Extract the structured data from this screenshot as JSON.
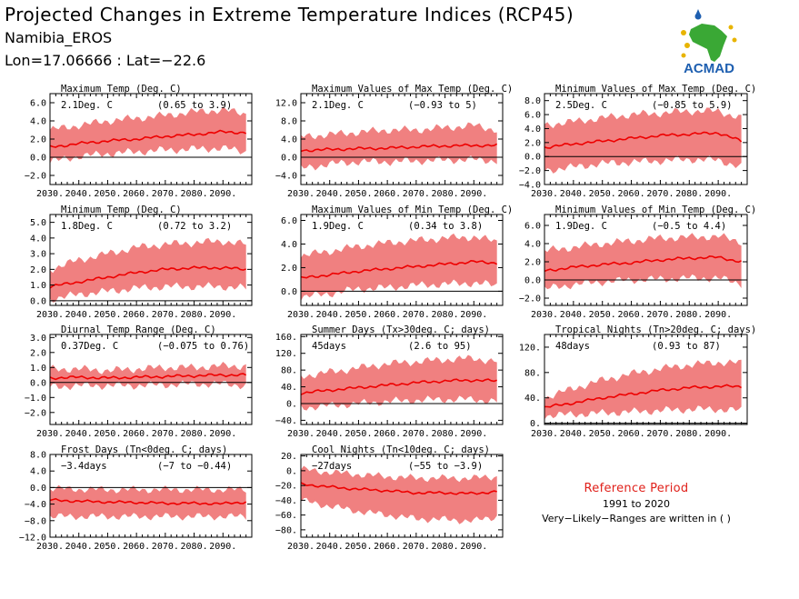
{
  "header": {
    "title": "Projected Changes in Extreme Temperature Indices (RCP45)",
    "station": "Namibia_EROS",
    "coords": "Lon=17.06666 : Lat=−22.6",
    "logo_text": "ACMAD"
  },
  "legend": {
    "title": "Reference Period",
    "period": "1991 to 2020",
    "note": "Very−Likely−Ranges are written in ( )"
  },
  "colors": {
    "band": "#f08080",
    "line": "#ee0000",
    "axis": "#000000",
    "logo_blue": "#1e5fb0",
    "logo_green": "#3aa835",
    "logo_yellow": "#e8b400"
  },
  "chart_data": [
    {
      "type": "area",
      "title": "Maximum Temp (Deg. C)",
      "summary": "2.1Deg. C",
      "range_text": "(0.65 to 3.9)",
      "x": [
        2030,
        2040,
        2050,
        2060,
        2070,
        2080,
        2090,
        2098
      ],
      "x_ticks": [
        "2030.",
        "2040.",
        "2050.",
        "2060.",
        "2070.",
        "2080.",
        "2090."
      ],
      "y_ticks": [
        "6.0",
        "4.0",
        "2.0",
        "0.0",
        "−2.0"
      ],
      "y_tick_values": [
        6,
        4,
        2,
        0,
        -2
      ],
      "ylim": [
        -3,
        7
      ],
      "median": [
        1.1,
        1.5,
        1.8,
        2.0,
        2.3,
        2.5,
        2.8,
        2.7
      ],
      "lower": [
        -0.5,
        0.1,
        0.4,
        0.6,
        0.8,
        0.9,
        1.0,
        0.6
      ],
      "upper": [
        3.0,
        3.5,
        4.0,
        4.3,
        4.6,
        5.0,
        5.2,
        4.8
      ],
      "zero_line": true
    },
    {
      "type": "area",
      "title": "Maximum Values of Max Temp (Deg. C)",
      "summary": "2.1Deg. C",
      "range_text": "(−0.93 to 5)",
      "x": [
        2030,
        2040,
        2050,
        2060,
        2070,
        2080,
        2090,
        2098
      ],
      "x_ticks": [
        "2030.",
        "2040.",
        "2050.",
        "2060.",
        "2070.",
        "2080.",
        "2090."
      ],
      "y_ticks": [
        "12.0",
        "8.0",
        "4.0",
        "0.0",
        "−4.0"
      ],
      "y_tick_values": [
        12,
        8,
        4,
        0,
        -4
      ],
      "ylim": [
        -6,
        14
      ],
      "median": [
        1.5,
        1.7,
        1.9,
        2.0,
        2.3,
        2.5,
        2.6,
        2.6
      ],
      "lower": [
        -2.5,
        -1.5,
        -1.0,
        -1.0,
        -0.8,
        -0.6,
        -0.5,
        -0.8
      ],
      "upper": [
        4.5,
        5.0,
        5.5,
        6.0,
        6.0,
        6.5,
        7.0,
        6.0
      ],
      "zero_line": true
    },
    {
      "type": "area",
      "title": "Minimum Values of Max Temp (Deg. C)",
      "summary": "2.5Deg. C",
      "range_text": "(−0.85 to 5.9)",
      "x": [
        2030,
        2040,
        2050,
        2060,
        2070,
        2080,
        2090,
        2098
      ],
      "x_ticks": [
        "2030.",
        "2040.",
        "2050.",
        "2060.",
        "2070.",
        "2080.",
        "2090."
      ],
      "y_ticks": [
        "8.0",
        "6.0",
        "4.0",
        "2.0",
        "0.0",
        "−2.0",
        "−4.0"
      ],
      "y_tick_values": [
        8,
        6,
        4,
        2,
        0,
        -2,
        -4
      ],
      "ylim": [
        -4,
        9
      ],
      "median": [
        1.3,
        1.8,
        2.2,
        2.6,
        3.0,
        3.2,
        3.4,
        2.2
      ],
      "lower": [
        -2.0,
        -1.5,
        -1.0,
        -0.8,
        -0.6,
        -0.4,
        -0.5,
        -1.5
      ],
      "upper": [
        4.5,
        5.0,
        5.5,
        6.0,
        6.2,
        6.5,
        6.5,
        5.5
      ],
      "zero_line": true
    },
    {
      "type": "area",
      "title": "Minimum Temp (Deg. C)",
      "summary": "1.8Deg. C",
      "range_text": "(0.72 to 3.2)",
      "x": [
        2030,
        2040,
        2050,
        2060,
        2070,
        2080,
        2090,
        2098
      ],
      "x_ticks": [
        "2030.",
        "2040.",
        "2050.",
        "2060.",
        "2070.",
        "2080.",
        "2090."
      ],
      "y_ticks": [
        "5.0",
        "4.0",
        "3.0",
        "2.0",
        "1.0",
        "0.0"
      ],
      "y_tick_values": [
        5,
        4,
        3,
        2,
        1,
        0
      ],
      "ylim": [
        -0.3,
        5.5
      ],
      "median": [
        0.9,
        1.2,
        1.5,
        1.8,
        2.0,
        2.1,
        2.1,
        2.0
      ],
      "lower": [
        0.1,
        0.4,
        0.6,
        0.8,
        0.9,
        0.9,
        0.9,
        0.8
      ],
      "upper": [
        2.0,
        2.6,
        3.0,
        3.4,
        3.6,
        3.7,
        3.8,
        3.6
      ],
      "zero_line": true
    },
    {
      "type": "area",
      "title": "Maximum Values of Min Temp (Deg. C)",
      "summary": "1.9Deg. C",
      "range_text": "(0.34 to 3.8)",
      "x": [
        2030,
        2040,
        2050,
        2060,
        2070,
        2080,
        2090,
        2098
      ],
      "x_ticks": [
        "2030.",
        "2040.",
        "2050.",
        "2060.",
        "2070.",
        "2080.",
        "2090."
      ],
      "y_ticks": [
        "6.0",
        "4.0",
        "2.0",
        "0.0"
      ],
      "y_tick_values": [
        6,
        4,
        2,
        0
      ],
      "ylim": [
        -1.2,
        6.5
      ],
      "median": [
        1.1,
        1.4,
        1.7,
        1.9,
        2.1,
        2.3,
        2.5,
        2.4
      ],
      "lower": [
        -0.5,
        -0.2,
        0.2,
        0.3,
        0.5,
        0.6,
        0.7,
        0.5
      ],
      "upper": [
        3.0,
        3.4,
        3.8,
        4.1,
        4.3,
        4.5,
        4.6,
        4.2
      ],
      "zero_line": true
    },
    {
      "type": "area",
      "title": "Minimum Values of Min Temp (Deg. C)",
      "summary": "1.9Deg. C",
      "range_text": "(−0.5 to 4.4)",
      "x": [
        2030,
        2040,
        2050,
        2060,
        2070,
        2080,
        2090,
        2098
      ],
      "x_ticks": [
        "2030.",
        "2040.",
        "2050.",
        "2060.",
        "2070.",
        "2080.",
        "2090."
      ],
      "y_ticks": [
        "6.0",
        "4.0",
        "2.0",
        "0.0",
        "−2.0"
      ],
      "y_tick_values": [
        6,
        4,
        2,
        0,
        -2
      ],
      "ylim": [
        -2.8,
        7.2
      ],
      "median": [
        1.0,
        1.4,
        1.7,
        1.9,
        2.2,
        2.4,
        2.5,
        2.0
      ],
      "lower": [
        -1.0,
        -0.5,
        -0.2,
        0.0,
        0.1,
        0.2,
        0.2,
        -0.4
      ],
      "upper": [
        3.2,
        3.6,
        4.0,
        4.3,
        4.6,
        4.7,
        4.8,
        4.2
      ],
      "zero_line": true
    },
    {
      "type": "area",
      "title": "Diurnal Temp Range (Deg. C)",
      "summary": "0.37Deg. C",
      "range_text": "(−0.075 to 0.76)",
      "x": [
        2030,
        2040,
        2050,
        2060,
        2070,
        2080,
        2090,
        2098
      ],
      "x_ticks": [
        "2030.",
        "2040.",
        "2050.",
        "2060.",
        "2070.",
        "2080.",
        "2090."
      ],
      "y_ticks": [
        "3.0",
        "2.0",
        "1.0",
        "0.0",
        "−1.0",
        "−2.0"
      ],
      "y_tick_values": [
        3,
        2,
        1,
        0,
        -1,
        -2
      ],
      "ylim": [
        -2.8,
        3.2
      ],
      "median": [
        0.3,
        0.35,
        0.3,
        0.35,
        0.4,
        0.45,
        0.5,
        0.5
      ],
      "lower": [
        -0.3,
        -0.2,
        -0.2,
        -0.2,
        -0.15,
        -0.1,
        -0.1,
        -0.2
      ],
      "upper": [
        0.9,
        0.9,
        0.8,
        0.9,
        1.0,
        1.0,
        1.1,
        1.1
      ],
      "zero_line": true
    },
    {
      "type": "area",
      "title": "Summer Days (Tx>30deg. C; days)",
      "summary": "45days",
      "range_text": "(2.6 to 95)",
      "x": [
        2030,
        2040,
        2050,
        2060,
        2070,
        2080,
        2090,
        2098
      ],
      "x_ticks": [
        "2030.",
        "2040.",
        "2050.",
        "2060.",
        "2070.",
        "2080.",
        "2090."
      ],
      "y_ticks": [
        "160.",
        "120.",
        "80.",
        "40.",
        "0.",
        "−40."
      ],
      "y_tick_values": [
        160,
        120,
        80,
        40,
        0,
        -40
      ],
      "ylim": [
        -50,
        165
      ],
      "median": [
        25,
        32,
        38,
        44,
        50,
        54,
        56,
        54
      ],
      "lower": [
        -10,
        -5,
        0,
        5,
        8,
        10,
        10,
        5
      ],
      "upper": [
        65,
        75,
        85,
        95,
        100,
        105,
        108,
        100
      ],
      "zero_line": true
    },
    {
      "type": "area",
      "title": "Tropical Nights (Tn>20deg. C; days)",
      "summary": "48days",
      "range_text": "(0.93 to 87)",
      "x": [
        2030,
        2040,
        2050,
        2060,
        2070,
        2080,
        2090,
        2098
      ],
      "x_ticks": [
        "2030.",
        "2040.",
        "2050.",
        "2060.",
        "2070.",
        "2080.",
        "2090."
      ],
      "y_ticks": [
        "120.",
        "80.",
        "40.",
        "0."
      ],
      "y_tick_values": [
        120,
        80,
        40,
        0
      ],
      "ylim": [
        -2,
        140
      ],
      "median": [
        25,
        32,
        40,
        46,
        52,
        56,
        58,
        58
      ],
      "lower": [
        12,
        14,
        16,
        18,
        20,
        22,
        22,
        20
      ],
      "upper": [
        40,
        55,
        68,
        78,
        86,
        92,
        96,
        95
      ],
      "zero_line": true
    },
    {
      "type": "area",
      "title": "Frost Days (Tn<0deg. C; days)",
      "summary": "−3.4days",
      "range_text": "(−7 to −0.44)",
      "x": [
        2030,
        2040,
        2050,
        2060,
        2070,
        2080,
        2090,
        2098
      ],
      "x_ticks": [
        "2030.",
        "2040.",
        "2050.",
        "2060.",
        "2070.",
        "2080.",
        "2090."
      ],
      "y_ticks": [
        "8.0",
        "4.0",
        "0.0",
        "−4.0",
        "−8.0",
        "−12.0"
      ],
      "y_tick_values": [
        8,
        4,
        0,
        -4,
        -8,
        -12
      ],
      "ylim": [
        -12,
        8
      ],
      "median": [
        -3.0,
        -3.3,
        -3.5,
        -3.6,
        -3.8,
        -3.8,
        -3.9,
        -3.5
      ],
      "lower": [
        -7.0,
        -7.0,
        -7.0,
        -7.0,
        -7.0,
        -7.0,
        -7.0,
        -7.0
      ],
      "upper": [
        -0.2,
        -0.4,
        -0.5,
        -0.5,
        -0.5,
        -0.5,
        -0.5,
        -0.5
      ],
      "zero_line": true
    },
    {
      "type": "area",
      "title": "Cool Nights (Tn<10deg. C; days)",
      "summary": "−27days",
      "range_text": "(−55 to −3.9)",
      "x": [
        2030,
        2040,
        2050,
        2060,
        2070,
        2080,
        2090,
        2098
      ],
      "x_ticks": [
        "2030.",
        "2040.",
        "2050.",
        "2060.",
        "2070.",
        "2080.",
        "2090."
      ],
      "y_ticks": [
        "20.",
        "0.",
        "−20.",
        "−40.",
        "−60.",
        "−80."
      ],
      "y_tick_values": [
        20,
        0,
        -20,
        -40,
        -60,
        -80
      ],
      "ylim": [
        -90,
        22
      ],
      "median": [
        -18,
        -22,
        -25,
        -27,
        -30,
        -30,
        -31,
        -28
      ],
      "lower": [
        -40,
        -48,
        -55,
        -60,
        -65,
        -66,
        -68,
        -62
      ],
      "upper": [
        2,
        -2,
        -5,
        -8,
        -10,
        -10,
        -10,
        -8
      ],
      "zero_line": false
    }
  ]
}
